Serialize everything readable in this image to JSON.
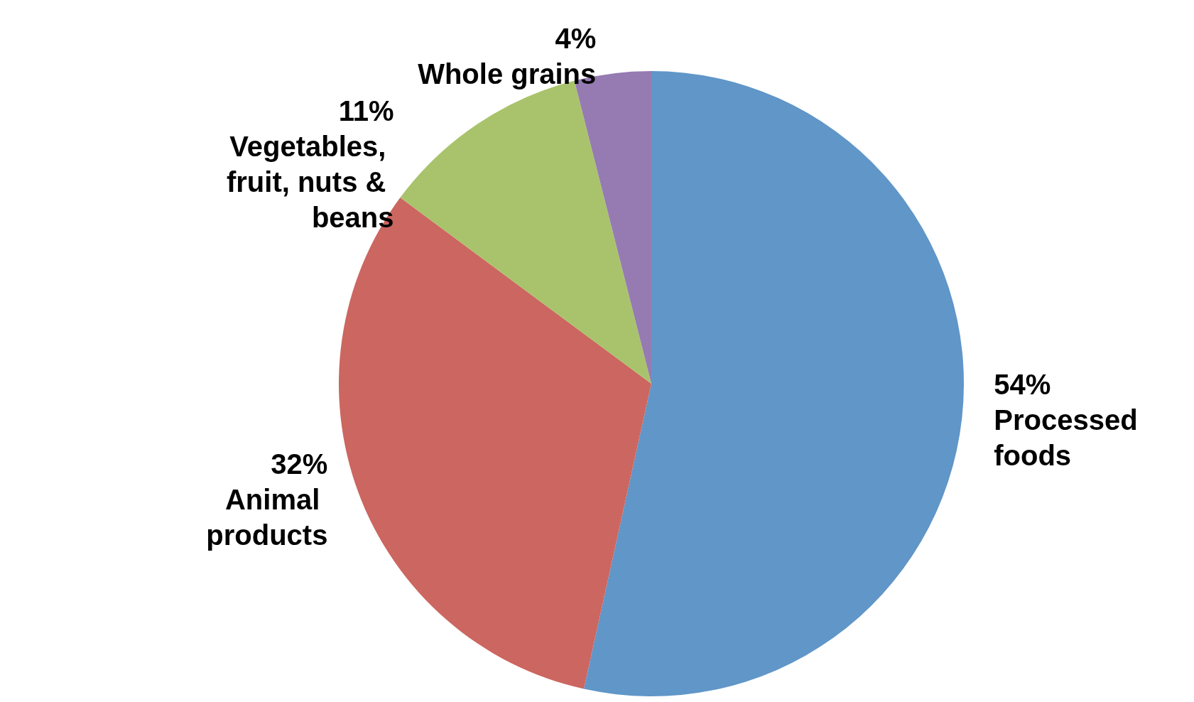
{
  "chart_data": {
    "type": "pie",
    "categories": [
      "Processed foods",
      "Animal products",
      "Vegetables, fruit, nuts & beans",
      "Whole grains"
    ],
    "values": [
      54,
      32,
      11,
      4
    ],
    "colors": [
      "#6096c8",
      "#cc6660",
      "#a9c36c",
      "#957bb1"
    ],
    "value_labels": [
      "54%",
      "32%",
      "11%",
      "4%"
    ],
    "legend": false
  }
}
